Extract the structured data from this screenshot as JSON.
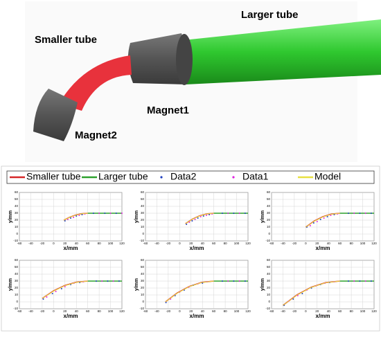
{
  "illustration": {
    "labels": [
      "Larger tube",
      "Smaller tube",
      "Magnet1",
      "Magnet2"
    ]
  },
  "chart_data": [
    {
      "type": "line",
      "xlabel": "x/mm",
      "ylabel": "y/mm",
      "xlim": [
        -60,
        120
      ],
      "ylim": [
        -10,
        60
      ],
      "xticks": [
        -60,
        -40,
        -20,
        0,
        20,
        40,
        60,
        80,
        100,
        120
      ],
      "yticks": [
        -10,
        0,
        10,
        20,
        30,
        40,
        50,
        60
      ],
      "grid": true,
      "series": [
        {
          "name": "Smaller tube",
          "color": "#d62728",
          "mode": "line",
          "x": [
            18,
            28,
            39,
            49,
            60
          ],
          "values": [
            20,
            24.2,
            27.5,
            29.3,
            30
          ]
        },
        {
          "name": "Larger tube",
          "color": "#2ca02c",
          "mode": "line",
          "x": [
            60,
            120
          ],
          "values": [
            30,
            30
          ]
        },
        {
          "name": "Data2",
          "color": "#1f3fbf",
          "mode": "dots",
          "x": [
            20,
            30,
            40,
            50,
            70,
            90,
            110
          ],
          "values": [
            19,
            23,
            26,
            28,
            30,
            30,
            30
          ]
        },
        {
          "name": "Data1",
          "color": "#e020e0",
          "mode": "dots",
          "x": [
            25,
            35,
            45,
            55,
            80,
            100,
            120
          ],
          "values": [
            21,
            24,
            27,
            29,
            30,
            30,
            30
          ]
        },
        {
          "name": "Model",
          "color": "#e8e040",
          "mode": "line",
          "x": [
            18,
            28,
            39,
            49,
            60
          ],
          "values": [
            20,
            24,
            27.3,
            29.2,
            30
          ]
        }
      ]
    },
    {
      "type": "line",
      "xlabel": "x/mm",
      "ylabel": "y/mm",
      "xlim": [
        -60,
        120
      ],
      "ylim": [
        -10,
        60
      ],
      "xticks": [
        -60,
        -40,
        -20,
        0,
        20,
        40,
        60,
        80,
        100,
        120
      ],
      "yticks": [
        -10,
        0,
        10,
        20,
        30,
        40,
        50,
        60
      ],
      "grid": true,
      "series": [
        {
          "color": "#d62728",
          "mode": "line",
          "x": [
            10,
            22.5,
            35,
            47.5,
            60
          ],
          "values": [
            15,
            21.6,
            26.3,
            29.1,
            30
          ]
        },
        {
          "color": "#2ca02c",
          "mode": "line",
          "x": [
            60,
            120
          ],
          "values": [
            30,
            30
          ]
        },
        {
          "color": "#1f3fbf",
          "mode": "dots",
          "x": [
            12,
            22,
            32,
            42,
            52,
            75,
            95,
            115
          ],
          "values": [
            14,
            19,
            23,
            26,
            28,
            30,
            30,
            30
          ]
        },
        {
          "color": "#e020e0",
          "mode": "dots",
          "x": [
            17,
            27,
            37,
            47,
            57,
            85,
            105
          ],
          "values": [
            17,
            21,
            25,
            27,
            29,
            30,
            30
          ]
        },
        {
          "color": "#e8e040",
          "mode": "line",
          "x": [
            10,
            22.5,
            35,
            47.5,
            60
          ],
          "values": [
            15,
            21.4,
            26,
            29,
            30
          ]
        }
      ]
    },
    {
      "type": "line",
      "xlabel": "x/mm",
      "ylabel": "y/mm",
      "xlim": [
        -60,
        120
      ],
      "ylim": [
        -10,
        60
      ],
      "xticks": [
        -60,
        -40,
        -20,
        0,
        20,
        40,
        60,
        80,
        100,
        120
      ],
      "yticks": [
        -10,
        0,
        10,
        20,
        30,
        40,
        50,
        60
      ],
      "grid": true,
      "series": [
        {
          "color": "#d62728",
          "mode": "line",
          "x": [
            0,
            15,
            30,
            45,
            60
          ],
          "values": [
            10,
            18.8,
            25,
            28.8,
            30
          ]
        },
        {
          "color": "#2ca02c",
          "mode": "line",
          "x": [
            60,
            120
          ],
          "values": [
            30,
            30
          ]
        },
        {
          "color": "#1f3fbf",
          "mode": "dots",
          "x": [
            2,
            14,
            26,
            38,
            50,
            75,
            95,
            115
          ],
          "values": [
            10,
            16,
            21,
            25,
            28,
            30,
            30,
            30
          ]
        },
        {
          "color": "#e020e0",
          "mode": "dots",
          "x": [
            8,
            20,
            32,
            44,
            56,
            85,
            105
          ],
          "values": [
            12,
            18,
            23,
            27,
            29,
            30,
            30
          ]
        },
        {
          "color": "#e8e040",
          "mode": "line",
          "x": [
            0,
            15,
            30,
            45,
            60
          ],
          "values": [
            10,
            18.5,
            24.6,
            28.6,
            30
          ]
        }
      ]
    },
    {
      "type": "line",
      "xlabel": "x/mm",
      "ylabel": "y/mm",
      "xlim": [
        -60,
        120
      ],
      "ylim": [
        -10,
        60
      ],
      "xticks": [
        -60,
        -40,
        -20,
        0,
        20,
        40,
        60,
        80,
        100,
        120
      ],
      "yticks": [
        -10,
        0,
        10,
        20,
        30,
        40,
        50,
        60
      ],
      "grid": true,
      "series": [
        {
          "color": "#d62728",
          "mode": "line",
          "x": [
            -20,
            0,
            20,
            40,
            60
          ],
          "values": [
            5,
            15.9,
            23.8,
            28.4,
            30
          ]
        },
        {
          "color": "#2ca02c",
          "mode": "line",
          "x": [
            60,
            120
          ],
          "values": [
            30,
            30
          ]
        },
        {
          "color": "#1f3fbf",
          "mode": "dots",
          "x": [
            -18,
            -2,
            14,
            30,
            46,
            75,
            95,
            115
          ],
          "values": [
            4,
            12,
            19,
            25,
            28,
            30,
            30,
            30
          ]
        },
        {
          "color": "#e020e0",
          "mode": "dots",
          "x": [
            -12,
            4,
            20,
            36,
            52,
            85,
            105
          ],
          "values": [
            7,
            15,
            22,
            27,
            29,
            30,
            30
          ]
        },
        {
          "color": "#e8e040",
          "mode": "line",
          "x": [
            -20,
            0,
            20,
            40,
            60
          ],
          "values": [
            5,
            15.5,
            23.4,
            28.2,
            30
          ]
        }
      ]
    },
    {
      "type": "line",
      "xlabel": "x/mm",
      "ylabel": "y/mm",
      "xlim": [
        -60,
        120
      ],
      "ylim": [
        -10,
        60
      ],
      "xticks": [
        -60,
        -40,
        -20,
        0,
        20,
        40,
        60,
        80,
        100,
        120
      ],
      "yticks": [
        -10,
        0,
        10,
        20,
        30,
        40,
        50,
        60
      ],
      "grid": true,
      "series": [
        {
          "color": "#d62728",
          "mode": "line",
          "x": [
            -25,
            -4,
            17,
            39,
            60
          ],
          "values": [
            0,
            13,
            22.3,
            28.2,
            30
          ]
        },
        {
          "color": "#2ca02c",
          "mode": "line",
          "x": [
            60,
            120
          ],
          "values": [
            30,
            30
          ]
        },
        {
          "color": "#1f3fbf",
          "mode": "dots",
          "x": [
            -24,
            -8,
            8,
            24,
            40,
            75,
            95,
            115
          ],
          "values": [
            -1,
            9,
            17,
            24,
            27,
            30,
            30,
            30
          ]
        },
        {
          "color": "#e020e0",
          "mode": "dots",
          "x": [
            -16,
            0,
            16,
            32,
            48,
            85,
            105
          ],
          "values": [
            4,
            14,
            21,
            26,
            29,
            30,
            30
          ]
        },
        {
          "color": "#e8e040",
          "mode": "line",
          "x": [
            -25,
            -4,
            17,
            39,
            60
          ],
          "values": [
            0,
            12.6,
            22,
            28,
            30
          ]
        }
      ]
    },
    {
      "type": "line",
      "xlabel": "x/mm",
      "ylabel": "y/mm",
      "xlim": [
        -60,
        120
      ],
      "ylim": [
        -10,
        60
      ],
      "xticks": [
        -60,
        -40,
        -20,
        0,
        20,
        40,
        60,
        80,
        100,
        120
      ],
      "yticks": [
        -10,
        0,
        10,
        20,
        30,
        40,
        50,
        60
      ],
      "grid": true,
      "series": [
        {
          "color": "#d62728",
          "mode": "line",
          "x": [
            -40,
            -15,
            10,
            35,
            60
          ],
          "values": [
            -5,
            10.3,
            21.3,
            27.8,
            30
          ]
        },
        {
          "color": "#2ca02c",
          "mode": "line",
          "x": [
            60,
            120
          ],
          "values": [
            30,
            30
          ]
        },
        {
          "color": "#1f3fbf",
          "mode": "dots",
          "x": [
            -38,
            -22,
            -6,
            10,
            26,
            42,
            75,
            95,
            115
          ],
          "values": [
            -5,
            4,
            12,
            20,
            25,
            28,
            30,
            30,
            30
          ]
        },
        {
          "color": "#e020e0",
          "mode": "dots",
          "x": [
            -30,
            -14,
            2,
            18,
            34,
            50,
            85,
            105
          ],
          "values": [
            1,
            9,
            17,
            23,
            27,
            29,
            30,
            30
          ]
        },
        {
          "color": "#e8e040",
          "mode": "line",
          "x": [
            -40,
            -15,
            10,
            35,
            60
          ],
          "values": [
            -5,
            10,
            21,
            27.6,
            30
          ]
        }
      ]
    }
  ]
}
